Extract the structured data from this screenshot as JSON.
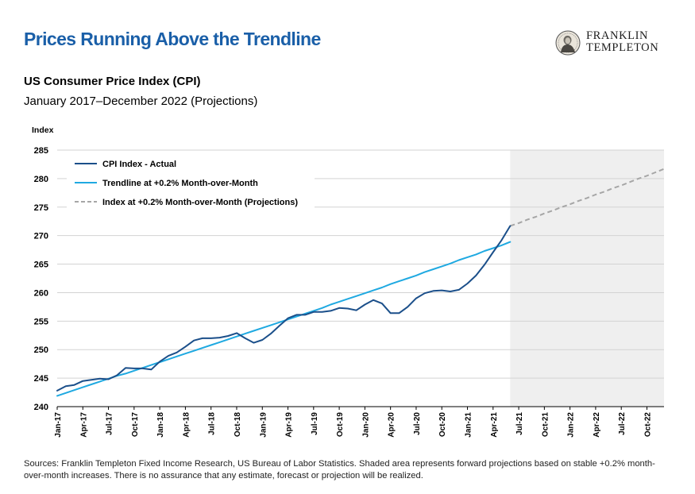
{
  "header": {
    "headline": "Prices Running Above the Trendline",
    "logo_line1": "FRANKLIN",
    "logo_line2": "TEMPLETON"
  },
  "chart_data": {
    "type": "line",
    "title": "US Consumer Price Index (CPI)",
    "subtitle": "January 2017–December 2022 (Projections)",
    "ylabel": "Index",
    "xlabel": "",
    "ylim": [
      240,
      285
    ],
    "yticks": [
      240,
      245,
      250,
      255,
      260,
      265,
      270,
      275,
      280,
      285
    ],
    "x_range": [
      "2017-01",
      "2022-12"
    ],
    "xtick_labels": [
      "Jan-17",
      "Apr-17",
      "Jul-17",
      "Oct-17",
      "Jan-18",
      "Apr-18",
      "Jul-18",
      "Oct-18",
      "Jan-19",
      "Apr-19",
      "Jul-19",
      "Oct-19",
      "Jan-20",
      "Apr-20",
      "Jul-20",
      "Oct-20",
      "Jan-21",
      "Apr-21",
      "Jul-21",
      "Oct-21",
      "Jan-22",
      "Apr-22",
      "Jul-22",
      "Oct-22"
    ],
    "xtick_months": [
      "2017-01",
      "2017-04",
      "2017-07",
      "2017-10",
      "2018-01",
      "2018-04",
      "2018-07",
      "2018-10",
      "2019-01",
      "2019-04",
      "2019-07",
      "2019-10",
      "2020-01",
      "2020-04",
      "2020-07",
      "2020-10",
      "2021-01",
      "2021-04",
      "2021-07",
      "2021-10",
      "2022-01",
      "2022-04",
      "2022-07",
      "2022-10"
    ],
    "shaded_region": {
      "from": "2021-06",
      "to": "2022-12",
      "color": "#efefef"
    },
    "grid": "horizontal",
    "legend_position": "top-left",
    "series": [
      {
        "name": "CPI Index - Actual",
        "color": "#1b4f8a",
        "style": "solid",
        "start": "2017-01",
        "values": [
          242.8,
          243.6,
          243.8,
          244.5,
          244.7,
          244.9,
          244.8,
          245.5,
          246.8,
          246.7,
          246.7,
          246.5,
          247.9,
          248.9,
          249.5,
          250.5,
          251.6,
          252.0,
          252.0,
          252.1,
          252.4,
          252.9,
          252.0,
          251.2,
          251.7,
          252.8,
          254.2,
          255.5,
          256.1,
          256.1,
          256.6,
          256.6,
          256.8,
          257.3,
          257.2,
          256.9,
          257.9,
          258.7,
          258.1,
          256.4,
          256.4,
          257.5,
          259.0,
          259.9,
          260.3,
          260.4,
          260.2,
          260.5,
          261.6,
          263.0,
          264.9,
          267.1,
          269.2,
          271.7
        ]
      },
      {
        "name": "Trendline at +0.2% Month-over-Month",
        "color": "#1fa9e1",
        "style": "solid",
        "start": "2017-01",
        "values": [
          241.9,
          242.4,
          242.9,
          243.4,
          243.9,
          244.4,
          244.9,
          245.4,
          245.8,
          246.3,
          246.8,
          247.3,
          247.8,
          248.3,
          248.8,
          249.3,
          249.8,
          250.3,
          250.8,
          251.3,
          251.8,
          252.3,
          252.8,
          253.3,
          253.8,
          254.3,
          254.8,
          255.3,
          255.8,
          256.3,
          256.8,
          257.3,
          257.9,
          258.4,
          258.9,
          259.4,
          259.9,
          260.4,
          260.9,
          261.5,
          262.0,
          262.5,
          263.0,
          263.6,
          264.1,
          264.6,
          265.1,
          265.7,
          266.2,
          266.7,
          267.3,
          267.8,
          268.3,
          268.9
        ]
      },
      {
        "name": "Index at +0.2% Month-over-Month (Projections)",
        "color": "#a6a6a6",
        "style": "dashed",
        "start": "2021-06",
        "values": [
          271.7,
          272.2,
          272.8,
          273.3,
          273.9,
          274.4,
          275.0,
          275.5,
          276.1,
          276.6,
          277.2,
          277.7,
          278.3,
          278.8,
          279.4,
          280.0,
          280.5,
          281.1,
          281.7
        ]
      }
    ]
  },
  "footer": {
    "sources": "Sources: Franklin Templeton Fixed Income Research, US Bureau of Labor Statistics. Shaded area represents forward projections based on stable +0.2% month-over-month increases. There is no assurance that any estimate, forecast or projection will be realized."
  }
}
